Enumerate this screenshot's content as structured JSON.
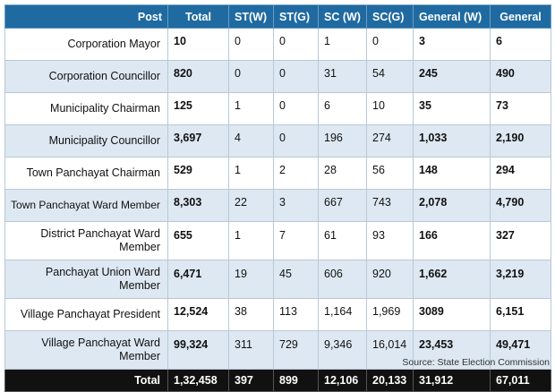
{
  "header": {
    "post": "Post",
    "total": "Total",
    "st_w": "ST(W)",
    "st_g": "ST(G)",
    "sc_w": "SC (W)",
    "sc_g": "SC(G)",
    "general_w": "General (W)",
    "general": "General"
  },
  "rows": [
    {
      "post": "Corporation Mayor",
      "total": "10",
      "st_w": "0",
      "st_g": "0",
      "sc_w": "1",
      "sc_g": "0",
      "general_w": "3",
      "general": "6"
    },
    {
      "post": "Corporation Councillor",
      "total": "820",
      "st_w": "0",
      "st_g": "0",
      "sc_w": "31",
      "sc_g": "54",
      "general_w": "245",
      "general": "490"
    },
    {
      "post": "Municipality Chairman",
      "total": "125",
      "st_w": "1",
      "st_g": "0",
      "sc_w": "6",
      "sc_g": "10",
      "general_w": "35",
      "general": "73"
    },
    {
      "post": "Municipality Councillor",
      "total": "3,697",
      "st_w": "4",
      "st_g": "0",
      "sc_w": "196",
      "sc_g": "274",
      "general_w": "1,033",
      "general": "2,190"
    },
    {
      "post": "Town Panchayat Chairman",
      "total": "529",
      "st_w": "1",
      "st_g": "2",
      "sc_w": "28",
      "sc_g": "56",
      "general_w": "148",
      "general": "294"
    },
    {
      "post": "Town Panchayat Ward Member",
      "total": "8,303",
      "st_w": "22",
      "st_g": "3",
      "sc_w": "667",
      "sc_g": "743",
      "general_w": "2,078",
      "general": "4,790"
    },
    {
      "post": "District Panchayat Ward Member",
      "total": "655",
      "st_w": "1",
      "st_g": "7",
      "sc_w": "61",
      "sc_g": "93",
      "general_w": "166",
      "general": "327"
    },
    {
      "post": "Panchayat Union Ward Member",
      "total": "6,471",
      "st_w": "19",
      "st_g": "45",
      "sc_w": "606",
      "sc_g": "920",
      "general_w": "1,662",
      "general": "3,219"
    },
    {
      "post": "Village Panchayat President",
      "total": "12,524",
      "st_w": "38",
      "st_g": "113",
      "sc_w": "1,164",
      "sc_g": "1,969",
      "general_w": "3089",
      "general": "6,151"
    },
    {
      "post": "Village Panchayat Ward Member",
      "total": "99,324",
      "st_w": "311",
      "st_g": "729",
      "sc_w": "9,346",
      "sc_g": "16,014",
      "general_w": "23,453",
      "general": "49,471"
    }
  ],
  "totals": {
    "label": "Total",
    "total": "1,32,458",
    "st_w": "397",
    "st_g": "899",
    "sc_w": "12,106",
    "sc_g": "20,133",
    "general_w": "31,912",
    "general": "67,011"
  },
  "source": "Source: State Election Commission",
  "colors": {
    "header_bg": "#1f6aa1",
    "stripe": "#dde8f2",
    "footer_bg": "#111111"
  }
}
